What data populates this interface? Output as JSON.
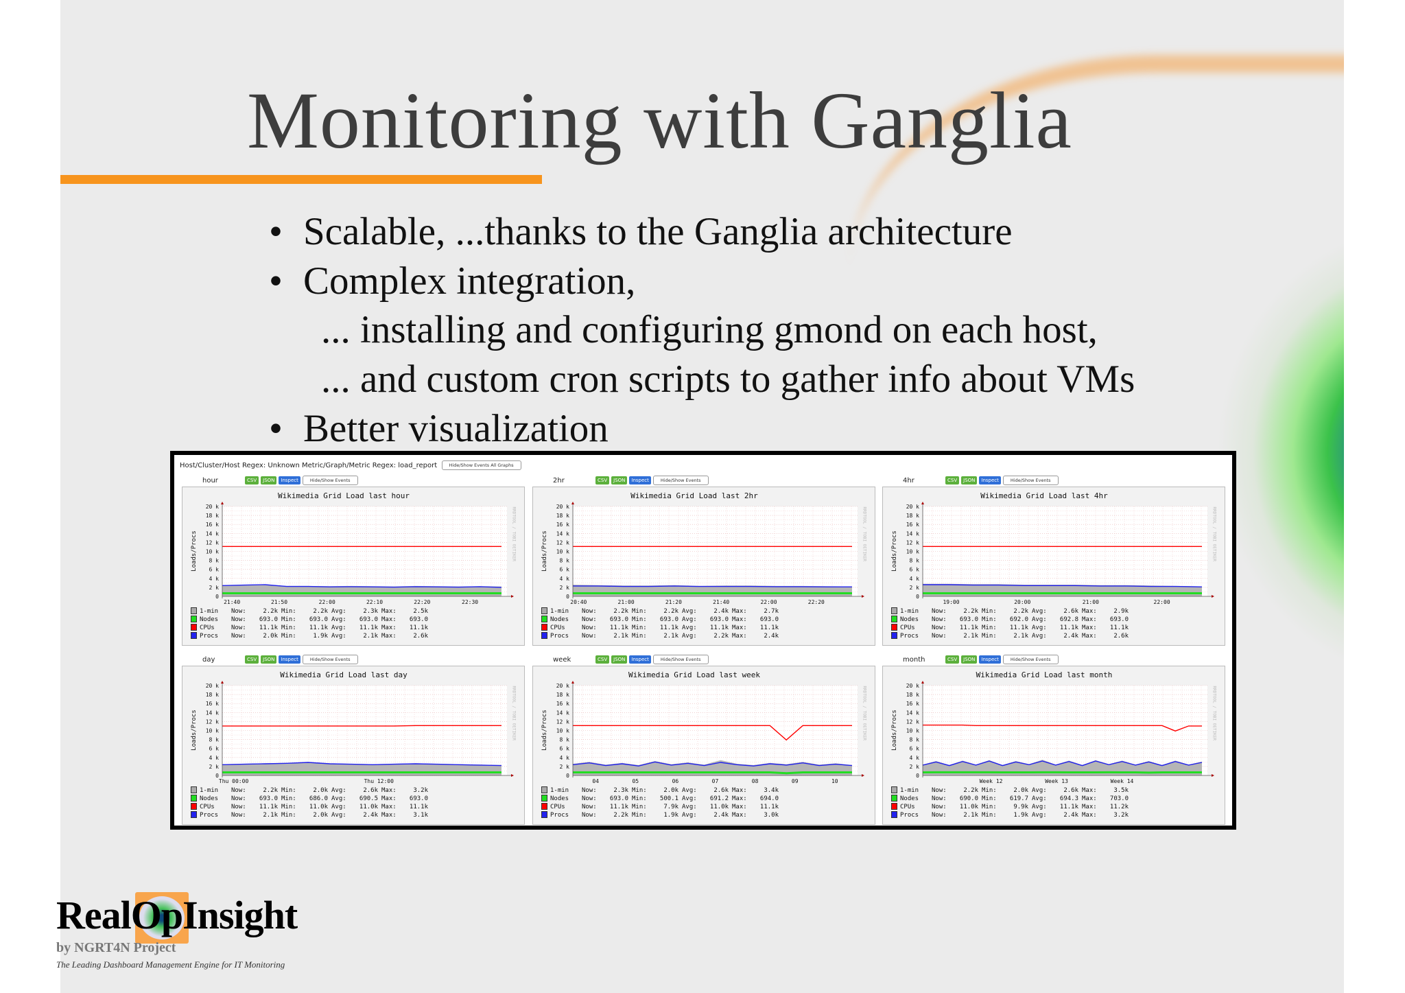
{
  "slide": {
    "title": "Monitoring with Ganglia",
    "accent_color": "#f7941d",
    "bullets": [
      {
        "text": "Scalable, ...thanks to the Ganglia architecture",
        "bullet": true
      },
      {
        "text": "Complex integration,",
        "bullet": true
      },
      {
        "text": "... installing and configuring gmond on each host,",
        "bullet": false
      },
      {
        "text": "... and custom cron scripts to gather info about VMs",
        "bullet": false
      },
      {
        "text": "Better visualization",
        "bullet": true
      }
    ],
    "bullet_glyph": "•"
  },
  "ganglia": {
    "regex_prefix": "Host/Cluster/Host Regex:",
    "regex_host": "Unknown",
    "regex_metric_prefix": "Metric/Graph/Metric Regex:",
    "regex_metric": "load_report",
    "hide_all_label": "Hide/Show Events All Graphs",
    "buttons": {
      "csv": "CSV",
      "json": "JSON",
      "inspect": "Inspect",
      "events": "Hide/Show Events"
    },
    "watermark": "RRDTOOL / TOBI OETIKER",
    "legend_labels": {
      "now": "Now:",
      "min": "Min:",
      "avg": "Avg:",
      "max": "Max:"
    },
    "colors": {
      "1-min": "#aaaaaa",
      "Nodes": "#22dd22",
      "CPUs": "#ff0000",
      "Procs": "#2222ee"
    }
  },
  "chart_data": [
    {
      "type": "area",
      "period": "hour",
      "title": "Wikimedia Grid Load last hour",
      "ylabel": "Loads/Procs",
      "ylim": [
        0,
        20000
      ],
      "yticks": [
        "0",
        "2 k",
        "4 k",
        "6 k",
        "8 k",
        "10 k",
        "12 k",
        "14 k",
        "16 k",
        "18 k",
        "20 k"
      ],
      "xticks": [
        "21:40",
        "21:50",
        "22:00",
        "22:10",
        "22:20",
        "22:30"
      ],
      "series": [
        {
          "name": "1-min",
          "now": "2.2k",
          "min": "2.2k",
          "avg": "2.3k",
          "max": "2.5k",
          "values": [
            2400,
            2450,
            2500,
            2300,
            2300,
            2250,
            2300,
            2250,
            2200,
            2300,
            2250,
            2200,
            2250,
            2200
          ]
        },
        {
          "name": "Nodes",
          "now": "693.0",
          "min": "693.0",
          "avg": "693.0",
          "max": "693.0",
          "values": [
            693,
            693,
            693,
            693,
            693,
            693,
            693,
            693,
            693,
            693,
            693,
            693,
            693,
            693
          ]
        },
        {
          "name": "CPUs",
          "now": "11.1k",
          "min": "11.1k",
          "avg": "11.1k",
          "max": "11.1k",
          "values": [
            11100,
            11100,
            11100,
            11100,
            11100,
            11100,
            11100,
            11100,
            11100,
            11100,
            11100,
            11100,
            11100,
            11100
          ]
        },
        {
          "name": "Procs",
          "now": "2.0k",
          "min": "1.9k",
          "avg": "2.1k",
          "max": "2.6k",
          "values": [
            2400,
            2500,
            2600,
            2200,
            2200,
            2100,
            2150,
            2100,
            2050,
            2150,
            2100,
            2050,
            2150,
            2000
          ]
        }
      ]
    },
    {
      "type": "area",
      "period": "2hr",
      "title": "Wikimedia Grid Load last 2hr",
      "ylabel": "Loads/Procs",
      "ylim": [
        0,
        20000
      ],
      "yticks": [
        "0",
        "2 k",
        "4 k",
        "6 k",
        "8 k",
        "10 k",
        "12 k",
        "14 k",
        "16 k",
        "18 k",
        "20 k"
      ],
      "xticks": [
        "20:40",
        "21:00",
        "21:20",
        "21:40",
        "22:00",
        "22:20"
      ],
      "series": [
        {
          "name": "1-min",
          "now": "2.2k",
          "min": "2.2k",
          "avg": "2.4k",
          "max": "2.7k",
          "values": [
            2600,
            2500,
            2400,
            2400,
            2500,
            2300,
            2400,
            2400,
            2300,
            2300,
            2250,
            2200
          ]
        },
        {
          "name": "Nodes",
          "now": "693.0",
          "min": "693.0",
          "avg": "693.0",
          "max": "693.0",
          "values": [
            693,
            693,
            693,
            693,
            693,
            693,
            693,
            693,
            693,
            693,
            693,
            693
          ]
        },
        {
          "name": "CPUs",
          "now": "11.1k",
          "min": "11.1k",
          "avg": "11.1k",
          "max": "11.1k",
          "values": [
            11100,
            11100,
            11100,
            11100,
            11100,
            11100,
            11100,
            11100,
            11100,
            11100,
            11100,
            11100
          ]
        },
        {
          "name": "Procs",
          "now": "2.1k",
          "min": "2.1k",
          "avg": "2.2k",
          "max": "2.4k",
          "values": [
            2300,
            2300,
            2200,
            2200,
            2300,
            2200,
            2200,
            2200,
            2150,
            2150,
            2100,
            2100
          ]
        }
      ]
    },
    {
      "type": "area",
      "period": "4hr",
      "title": "Wikimedia Grid Load last 4hr",
      "ylabel": "Loads/Procs",
      "ylim": [
        0,
        20000
      ],
      "yticks": [
        "0",
        "2 k",
        "4 k",
        "6 k",
        "8 k",
        "10 k",
        "12 k",
        "14 k",
        "16 k",
        "18 k",
        "20 k"
      ],
      "xticks": [
        "19:00",
        "20:00",
        "21:00",
        "22:00"
      ],
      "series": [
        {
          "name": "1-min",
          "now": "2.2k",
          "min": "2.2k",
          "avg": "2.6k",
          "max": "2.9k",
          "values": [
            2800,
            2800,
            2700,
            2700,
            2600,
            2600,
            2600,
            2500,
            2500,
            2400,
            2300,
            2200
          ]
        },
        {
          "name": "Nodes",
          "now": "693.0",
          "min": "692.0",
          "avg": "692.8",
          "max": "693.0",
          "values": [
            693,
            693,
            692,
            693,
            693,
            693,
            693,
            693,
            693,
            693,
            693,
            693
          ]
        },
        {
          "name": "CPUs",
          "now": "11.1k",
          "min": "11.1k",
          "avg": "11.1k",
          "max": "11.1k",
          "values": [
            11100,
            11100,
            11100,
            11100,
            11100,
            11100,
            11100,
            11100,
            11100,
            11100,
            11100,
            11100
          ]
        },
        {
          "name": "Procs",
          "now": "2.1k",
          "min": "2.1k",
          "avg": "2.4k",
          "max": "2.6k",
          "values": [
            2600,
            2600,
            2500,
            2500,
            2400,
            2400,
            2400,
            2300,
            2300,
            2200,
            2200,
            2100
          ]
        }
      ]
    },
    {
      "type": "area",
      "period": "day",
      "title": "Wikimedia Grid Load last day",
      "ylabel": "Loads/Procs",
      "ylim": [
        0,
        20000
      ],
      "yticks": [
        "0",
        "2 k",
        "4 k",
        "6 k",
        "8 k",
        "10 k",
        "12 k",
        "14 k",
        "16 k",
        "18 k",
        "20 k"
      ],
      "xticks": [
        "Thu 00:00",
        "Thu 12:00"
      ],
      "series": [
        {
          "name": "1-min",
          "now": "2.2k",
          "min": "2.0k",
          "avg": "2.6k",
          "max": "3.2k",
          "values": [
            2500,
            2600,
            2700,
            2800,
            3000,
            2700,
            2600,
            2500,
            2600,
            2700,
            2600,
            2500,
            2400,
            2300
          ]
        },
        {
          "name": "Nodes",
          "now": "693.0",
          "min": "686.0",
          "avg": "690.5",
          "max": "693.0",
          "values": [
            690,
            690,
            686,
            690,
            691,
            691,
            690,
            690,
            691,
            692,
            693,
            693,
            693,
            693
          ]
        },
        {
          "name": "CPUs",
          "now": "11.1k",
          "min": "11.0k",
          "avg": "11.0k",
          "max": "11.1k",
          "values": [
            11000,
            11000,
            11000,
            11000,
            11000,
            11000,
            11000,
            11000,
            11000,
            11100,
            11100,
            11100,
            11100,
            11100
          ]
        },
        {
          "name": "Procs",
          "now": "2.1k",
          "min": "2.0k",
          "avg": "2.4k",
          "max": "3.1k",
          "values": [
            2400,
            2500,
            2600,
            2700,
            2900,
            2600,
            2500,
            2400,
            2500,
            2600,
            2500,
            2400,
            2300,
            2200
          ]
        }
      ]
    },
    {
      "type": "area",
      "period": "week",
      "title": "Wikimedia Grid Load last week",
      "ylabel": "Loads/Procs",
      "ylim": [
        0,
        20000
      ],
      "yticks": [
        "0",
        "2 k",
        "4 k",
        "6 k",
        "8 k",
        "10 k",
        "12 k",
        "14 k",
        "16 k",
        "18 k",
        "20 k"
      ],
      "xticks": [
        "04",
        "05",
        "06",
        "07",
        "08",
        "09",
        "10"
      ],
      "series": [
        {
          "name": "1-min",
          "now": "2.3k",
          "min": "2.0k",
          "avg": "2.6k",
          "max": "3.4k",
          "values": [
            2600,
            3000,
            2400,
            2800,
            2300,
            3200,
            2500,
            2900,
            2400,
            3400,
            2600,
            2300,
            2800,
            2500,
            3000,
            2400,
            2700,
            2300
          ]
        },
        {
          "name": "Nodes",
          "now": "693.0",
          "min": "500.1",
          "avg": "691.2",
          "max": "694.0",
          "values": [
            693,
            693,
            693,
            693,
            693,
            693,
            693,
            693,
            693,
            693,
            693,
            693,
            693,
            500,
            693,
            693,
            693,
            693
          ]
        },
        {
          "name": "CPUs",
          "now": "11.1k",
          "min": "7.9k",
          "avg": "11.0k",
          "max": "11.1k",
          "values": [
            11100,
            11100,
            11100,
            11100,
            11100,
            11100,
            11100,
            11100,
            11100,
            11100,
            11100,
            11100,
            11100,
            7900,
            11100,
            11100,
            11100,
            11100
          ]
        },
        {
          "name": "Procs",
          "now": "2.2k",
          "min": "1.9k",
          "avg": "2.4k",
          "max": "3.0k",
          "values": [
            2400,
            2800,
            2200,
            2600,
            2100,
            3000,
            2300,
            2700,
            2200,
            2900,
            2400,
            2100,
            2600,
            2300,
            2800,
            2200,
            2500,
            2200
          ]
        }
      ]
    },
    {
      "type": "area",
      "period": "month",
      "title": "Wikimedia Grid Load last month",
      "ylabel": "Loads/Procs",
      "ylim": [
        0,
        20000
      ],
      "yticks": [
        "0",
        "2 k",
        "4 k",
        "6 k",
        "8 k",
        "10 k",
        "12 k",
        "14 k",
        "16 k",
        "18 k",
        "20 k"
      ],
      "xticks": [
        "Week 12",
        "Week 13",
        "Week 14"
      ],
      "series": [
        {
          "name": "1-min",
          "now": "2.2k",
          "min": "2.0k",
          "avg": "2.6k",
          "max": "3.5k",
          "values": [
            2400,
            3200,
            2300,
            3300,
            2400,
            3400,
            2300,
            3200,
            2500,
            3500,
            2400,
            3300,
            2300,
            3400,
            2500,
            3300,
            2400,
            3200,
            2300,
            3300,
            2400,
            3100
          ]
        },
        {
          "name": "Nodes",
          "now": "690.0",
          "min": "619.7",
          "avg": "694.3",
          "max": "703.0",
          "values": [
            690,
            695,
            700,
            703,
            698,
            695,
            694,
            693,
            694,
            695,
            696,
            694,
            693,
            694,
            695,
            694,
            693,
            620,
            693,
            692,
            691,
            690
          ]
        },
        {
          "name": "CPUs",
          "now": "11.0k",
          "min": "9.9k",
          "avg": "11.1k",
          "max": "11.2k",
          "values": [
            11200,
            11200,
            11200,
            11200,
            11100,
            11100,
            11100,
            11100,
            11100,
            11100,
            11100,
            11100,
            11100,
            11100,
            11100,
            11100,
            11100,
            11100,
            11100,
            9900,
            11000,
            11000
          ]
        },
        {
          "name": "Procs",
          "now": "2.1k",
          "min": "1.9k",
          "avg": "2.4k",
          "max": "3.2k",
          "values": [
            2300,
            3000,
            2200,
            3100,
            2300,
            3200,
            2200,
            3000,
            2400,
            3200,
            2300,
            3100,
            2200,
            3200,
            2400,
            3100,
            2300,
            3000,
            2200,
            3100,
            2300,
            2900
          ]
        }
      ]
    }
  ],
  "logo": {
    "name": "RealOpInsight",
    "sub": "by NGRT4N Project",
    "tagline": "The Leading Dashboard Management Engine for IT Monitoring"
  }
}
